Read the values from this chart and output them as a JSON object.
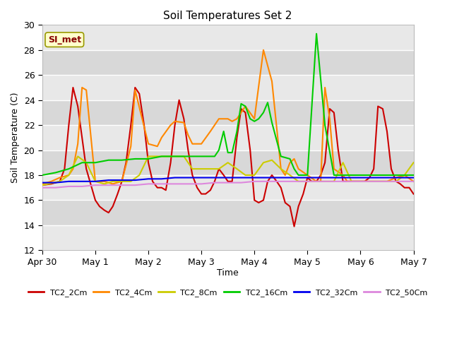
{
  "title": "Soil Temperatures Set 2",
  "xlabel": "Time",
  "ylabel": "Soil Temperature (C)",
  "ylim": [
    12,
    30
  ],
  "yticks": [
    12,
    14,
    16,
    18,
    20,
    22,
    24,
    26,
    28,
    30
  ],
  "fig_bg": "#ffffff",
  "plot_bg": "#f0f0f0",
  "annotation_text": "SI_met",
  "annotation_bg": "#ffffcc",
  "annotation_border": "#999900",
  "series": {
    "TC2_2Cm": {
      "color": "#cc0000",
      "x": [
        0.0,
        0.17,
        0.33,
        0.42,
        0.5,
        0.58,
        0.67,
        0.75,
        0.83,
        1.0,
        1.08,
        1.17,
        1.25,
        1.33,
        1.42,
        1.5,
        1.58,
        1.67,
        1.75,
        1.83,
        1.92,
        2.0,
        2.08,
        2.17,
        2.25,
        2.33,
        2.42,
        2.5,
        2.58,
        2.67,
        2.75,
        2.83,
        2.92,
        3.0,
        3.08,
        3.17,
        3.25,
        3.33,
        3.42,
        3.5,
        3.58,
        3.67,
        3.75,
        3.83,
        3.92,
        4.0,
        4.08,
        4.17,
        4.25,
        4.33,
        4.42,
        4.5,
        4.58,
        4.67,
        4.75,
        4.83,
        4.92,
        5.0,
        5.08,
        5.17,
        5.25,
        5.33,
        5.42,
        5.5,
        5.58,
        5.67,
        5.75,
        5.83,
        5.92,
        6.0,
        6.08,
        6.17,
        6.25,
        6.33,
        6.42,
        6.5,
        6.58,
        6.67,
        6.75,
        6.83,
        6.92,
        7.0
      ],
      "y": [
        17.2,
        17.3,
        17.5,
        18.5,
        22.0,
        25.0,
        23.5,
        21.0,
        18.5,
        16.0,
        15.5,
        15.2,
        15.0,
        15.5,
        16.5,
        17.5,
        19.0,
        22.0,
        25.0,
        24.5,
        22.0,
        19.0,
        17.5,
        17.0,
        17.0,
        16.8,
        19.0,
        22.0,
        24.0,
        22.5,
        20.0,
        18.0,
        17.0,
        16.5,
        16.5,
        16.8,
        17.5,
        18.5,
        18.0,
        17.5,
        17.5,
        21.0,
        23.3,
        23.0,
        20.0,
        16.0,
        15.8,
        16.0,
        17.5,
        18.0,
        17.5,
        17.0,
        15.8,
        15.5,
        13.9,
        15.5,
        16.5,
        17.8,
        17.5,
        17.5,
        18.0,
        19.0,
        23.3,
        23.0,
        20.0,
        17.5,
        17.5,
        17.5,
        17.5,
        17.5,
        17.5,
        17.8,
        18.5,
        23.5,
        23.3,
        21.5,
        18.5,
        17.5,
        17.3,
        17.0,
        17.0,
        16.5
      ]
    },
    "TC2_4Cm": {
      "color": "#ff8800",
      "x": [
        0.0,
        0.17,
        0.33,
        0.5,
        0.58,
        0.67,
        0.75,
        0.83,
        1.0,
        1.17,
        1.33,
        1.5,
        1.67,
        1.75,
        2.0,
        2.17,
        2.25,
        2.42,
        2.5,
        2.67,
        2.75,
        2.83,
        3.0,
        3.17,
        3.33,
        3.5,
        3.58,
        3.67,
        3.75,
        3.83,
        4.0,
        4.17,
        4.33,
        4.5,
        4.58,
        4.67,
        4.75,
        4.83,
        5.0,
        5.17,
        5.25,
        5.33,
        5.42,
        5.5,
        5.67,
        5.75,
        5.83,
        6.0,
        6.17,
        6.25,
        6.5,
        6.67,
        6.83,
        7.0
      ],
      "y": [
        17.3,
        17.5,
        17.8,
        18.0,
        18.5,
        20.5,
        25.0,
        24.8,
        17.5,
        17.5,
        17.3,
        17.5,
        20.3,
        24.8,
        20.5,
        20.3,
        21.0,
        22.0,
        22.3,
        22.2,
        21.2,
        20.5,
        20.5,
        21.5,
        22.5,
        22.5,
        22.3,
        22.5,
        23.0,
        23.5,
        22.5,
        28.0,
        25.5,
        18.5,
        18.0,
        19.0,
        19.3,
        18.5,
        18.0,
        17.5,
        17.5,
        25.0,
        22.5,
        18.5,
        18.0,
        17.5,
        17.5,
        17.5,
        17.5,
        17.5,
        17.5,
        17.8,
        18.0,
        17.5
      ]
    },
    "TC2_8Cm": {
      "color": "#cccc00",
      "x": [
        0.0,
        0.33,
        0.5,
        0.67,
        0.83,
        1.0,
        1.17,
        1.33,
        1.5,
        1.67,
        1.83,
        2.0,
        2.17,
        2.33,
        2.5,
        2.67,
        2.83,
        3.0,
        3.17,
        3.33,
        3.5,
        3.67,
        3.83,
        4.0,
        4.17,
        4.33,
        4.5,
        4.67,
        4.83,
        5.0,
        5.17,
        5.33,
        5.5,
        5.67,
        5.83,
        6.0,
        6.17,
        6.33,
        6.5,
        6.67,
        6.83,
        7.0
      ],
      "y": [
        17.2,
        17.5,
        18.0,
        19.5,
        19.0,
        17.5,
        17.3,
        17.5,
        17.5,
        17.5,
        18.0,
        19.5,
        19.5,
        19.5,
        19.5,
        19.5,
        18.5,
        18.5,
        18.5,
        18.5,
        19.0,
        18.5,
        18.0,
        18.0,
        19.0,
        19.2,
        18.5,
        18.0,
        17.5,
        17.5,
        17.5,
        17.5,
        17.5,
        19.0,
        17.5,
        17.5,
        17.5,
        17.5,
        17.5,
        17.5,
        18.0,
        19.0
      ]
    },
    "TC2_16Cm": {
      "color": "#00cc00",
      "x": [
        0.0,
        0.25,
        0.5,
        0.75,
        1.0,
        1.25,
        1.5,
        1.75,
        2.0,
        2.25,
        2.5,
        2.75,
        3.0,
        3.25,
        3.33,
        3.42,
        3.5,
        3.58,
        3.67,
        3.75,
        3.83,
        3.92,
        4.0,
        4.08,
        4.17,
        4.25,
        4.33,
        4.5,
        4.67,
        4.75,
        4.83,
        4.92,
        5.0,
        5.17,
        5.33,
        5.5,
        5.67,
        5.83,
        6.0,
        6.17,
        6.33,
        6.5,
        6.67,
        6.83,
        7.0
      ],
      "y": [
        18.0,
        18.2,
        18.5,
        19.0,
        19.0,
        19.2,
        19.2,
        19.3,
        19.3,
        19.5,
        19.5,
        19.5,
        19.5,
        19.5,
        20.0,
        21.5,
        19.8,
        19.8,
        21.5,
        23.7,
        23.5,
        22.5,
        22.3,
        22.5,
        23.0,
        23.8,
        22.2,
        19.5,
        19.3,
        18.5,
        18.0,
        18.0,
        18.0,
        29.3,
        22.0,
        18.0,
        18.0,
        18.0,
        18.0,
        18.0,
        18.0,
        18.0,
        18.0,
        18.0,
        18.0
      ]
    },
    "TC2_32Cm": {
      "color": "#0000ee",
      "x": [
        0.0,
        0.25,
        0.5,
        0.75,
        1.0,
        1.25,
        1.5,
        1.75,
        2.0,
        2.25,
        2.5,
        2.75,
        3.0,
        3.25,
        3.5,
        3.75,
        4.0,
        4.25,
        4.5,
        4.75,
        5.0,
        5.25,
        5.5,
        5.75,
        6.0,
        6.25,
        6.5,
        6.75,
        7.0
      ],
      "y": [
        17.4,
        17.4,
        17.5,
        17.5,
        17.5,
        17.6,
        17.6,
        17.6,
        17.7,
        17.7,
        17.8,
        17.8,
        17.8,
        17.8,
        17.8,
        17.8,
        17.8,
        17.8,
        17.8,
        17.8,
        17.8,
        17.8,
        17.8,
        17.8,
        17.8,
        17.8,
        17.8,
        17.8,
        17.8
      ]
    },
    "TC2_50Cm": {
      "color": "#dd88dd",
      "x": [
        0.0,
        0.25,
        0.5,
        0.75,
        1.0,
        1.25,
        1.5,
        1.75,
        2.0,
        2.25,
        2.5,
        2.75,
        3.0,
        3.25,
        3.5,
        3.75,
        4.0,
        4.25,
        4.5,
        4.75,
        5.0,
        5.25,
        5.5,
        5.75,
        6.0,
        6.25,
        6.5,
        6.75,
        7.0
      ],
      "y": [
        17.0,
        17.0,
        17.1,
        17.1,
        17.2,
        17.2,
        17.2,
        17.2,
        17.3,
        17.3,
        17.3,
        17.3,
        17.3,
        17.4,
        17.4,
        17.4,
        17.5,
        17.5,
        17.5,
        17.5,
        17.5,
        17.5,
        17.5,
        17.5,
        17.5,
        17.5,
        17.5,
        17.5,
        17.5
      ]
    }
  },
  "xtick_positions": [
    0,
    1,
    2,
    3,
    4,
    5,
    6,
    7
  ],
  "xtick_labels": [
    "Apr 30",
    "May 1",
    "May 2",
    "May 3",
    "May 4",
    "May 5",
    "May 6",
    "May 7"
  ],
  "legend_order": [
    "TC2_2Cm",
    "TC2_4Cm",
    "TC2_8Cm",
    "TC2_16Cm",
    "TC2_32Cm",
    "TC2_50Cm"
  ],
  "legend_colors": [
    "#cc0000",
    "#ff8800",
    "#cccc00",
    "#00cc00",
    "#0000ee",
    "#dd88dd"
  ]
}
